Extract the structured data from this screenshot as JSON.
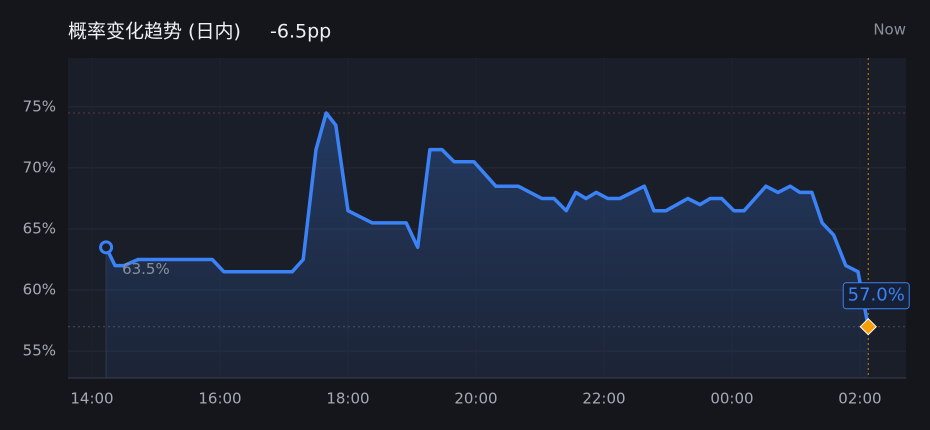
{
  "chart_data": {
    "type": "line",
    "title": "概率变化趋势 (日内)",
    "subtitle": "-6.5pp",
    "now_label": "Now",
    "x": [
      14.22,
      14.36,
      14.5,
      14.72,
      15.88,
      16.06,
      17.13,
      17.3,
      17.5,
      17.66,
      17.81,
      18.0,
      18.38,
      18.91,
      19.09,
      19.28,
      19.47,
      19.66,
      19.97,
      20.31,
      20.66,
      21.03,
      21.22,
      21.41,
      21.56,
      21.72,
      21.88,
      22.06,
      22.25,
      22.63,
      22.78,
      22.97,
      23.31,
      23.5,
      23.66,
      23.84,
      24.03,
      24.19,
      24.53,
      24.72,
      24.91,
      25.06,
      25.25,
      25.41,
      25.59,
      25.78,
      25.97,
      26.13
    ],
    "values": [
      63.5,
      62,
      62,
      62.5,
      62.5,
      61.5,
      61.5,
      62.5,
      71.5,
      74.5,
      73.5,
      66.5,
      65.5,
      65.5,
      63.5,
      71.5,
      71.5,
      70.5,
      70.5,
      68.5,
      68.5,
      67.5,
      67.5,
      66.5,
      68,
      67.5,
      68,
      67.5,
      67.5,
      68.5,
      66.5,
      66.5,
      67.5,
      67,
      67.5,
      67.5,
      66.5,
      66.5,
      68.5,
      68,
      68.5,
      68,
      68,
      65.5,
      64.5,
      62,
      61.5,
      57
    ],
    "value_labels": [
      "63.5%",
      null,
      null,
      null,
      null,
      null,
      null,
      null,
      null,
      null,
      null,
      null,
      null,
      null,
      null,
      null,
      null,
      null,
      null,
      null,
      null,
      null,
      null,
      null,
      null,
      null,
      null,
      null,
      null,
      null,
      null,
      null,
      null,
      null,
      null,
      null,
      null,
      null,
      null,
      null,
      null,
      null,
      null,
      null,
      null,
      null,
      null,
      "57.0%"
    ],
    "color": "#3b82f6",
    "marker_color": "#f59e0b",
    "xlim": [
      13.625,
      26.72
    ],
    "ylim": [
      52.8,
      79
    ],
    "xticks": [
      {
        "value": 14,
        "label": "14:00"
      },
      {
        "value": 16,
        "label": "16:00"
      },
      {
        "value": 18,
        "label": "18:00"
      },
      {
        "value": 20,
        "label": "20:00"
      },
      {
        "value": 22,
        "label": "22:00"
      },
      {
        "value": 24,
        "label": "00:00"
      },
      {
        "value": 26,
        "label": "02:00"
      }
    ],
    "yticks": [
      {
        "value": 55,
        "label": "55%"
      },
      {
        "value": 60,
        "label": "60%"
      },
      {
        "value": 65,
        "label": "65%"
      },
      {
        "value": 70,
        "label": "70%"
      },
      {
        "value": 75,
        "label": "75%"
      }
    ],
    "grid": true
  }
}
